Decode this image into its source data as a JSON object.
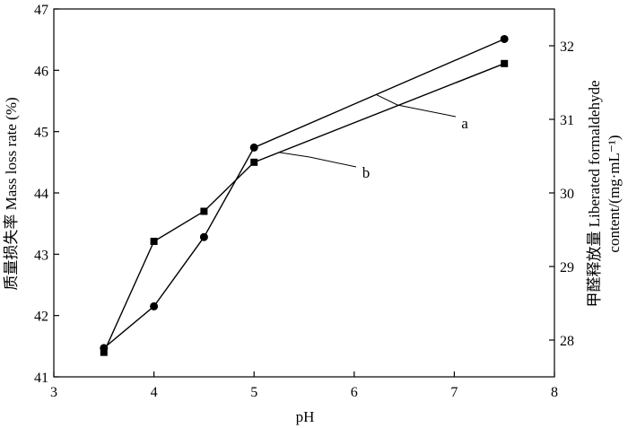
{
  "chart_data": {
    "type": "line",
    "xlabel": "pH",
    "ylabel_left": "质量损失率 Mass loss rate (%)",
    "ylabel_right_line1": "甲醛释放量 Liberated formaldehyde",
    "ylabel_right_line2": "content/(mg·mL⁻¹)",
    "xlim": [
      3,
      8
    ],
    "ylim_left": [
      41,
      47
    ],
    "ylim_right": [
      27.5,
      32.5
    ],
    "x_ticks": [
      "3",
      "4",
      "5",
      "6",
      "7",
      "8"
    ],
    "y_left_ticks": [
      "41",
      "42",
      "43",
      "44",
      "45",
      "46",
      "47"
    ],
    "y_right_ticks": [
      "28",
      "29",
      "30",
      "31",
      "32"
    ],
    "grid": false,
    "series": [
      {
        "name": "a",
        "marker": "circle",
        "axis": "left",
        "x": [
          3.5,
          4,
          4.5,
          5,
          7.5
        ],
        "y": [
          41.47,
          42.15,
          43.28,
          44.74,
          46.51
        ]
      },
      {
        "name": "b",
        "marker": "square",
        "axis": "left",
        "x": [
          3.5,
          4,
          4.5,
          5,
          7.5
        ],
        "y": [
          41.4,
          43.21,
          43.7,
          44.5,
          46.11
        ]
      }
    ],
    "annotations": [
      {
        "label": "a",
        "series": "a"
      },
      {
        "label": "b",
        "series": "b"
      }
    ]
  }
}
